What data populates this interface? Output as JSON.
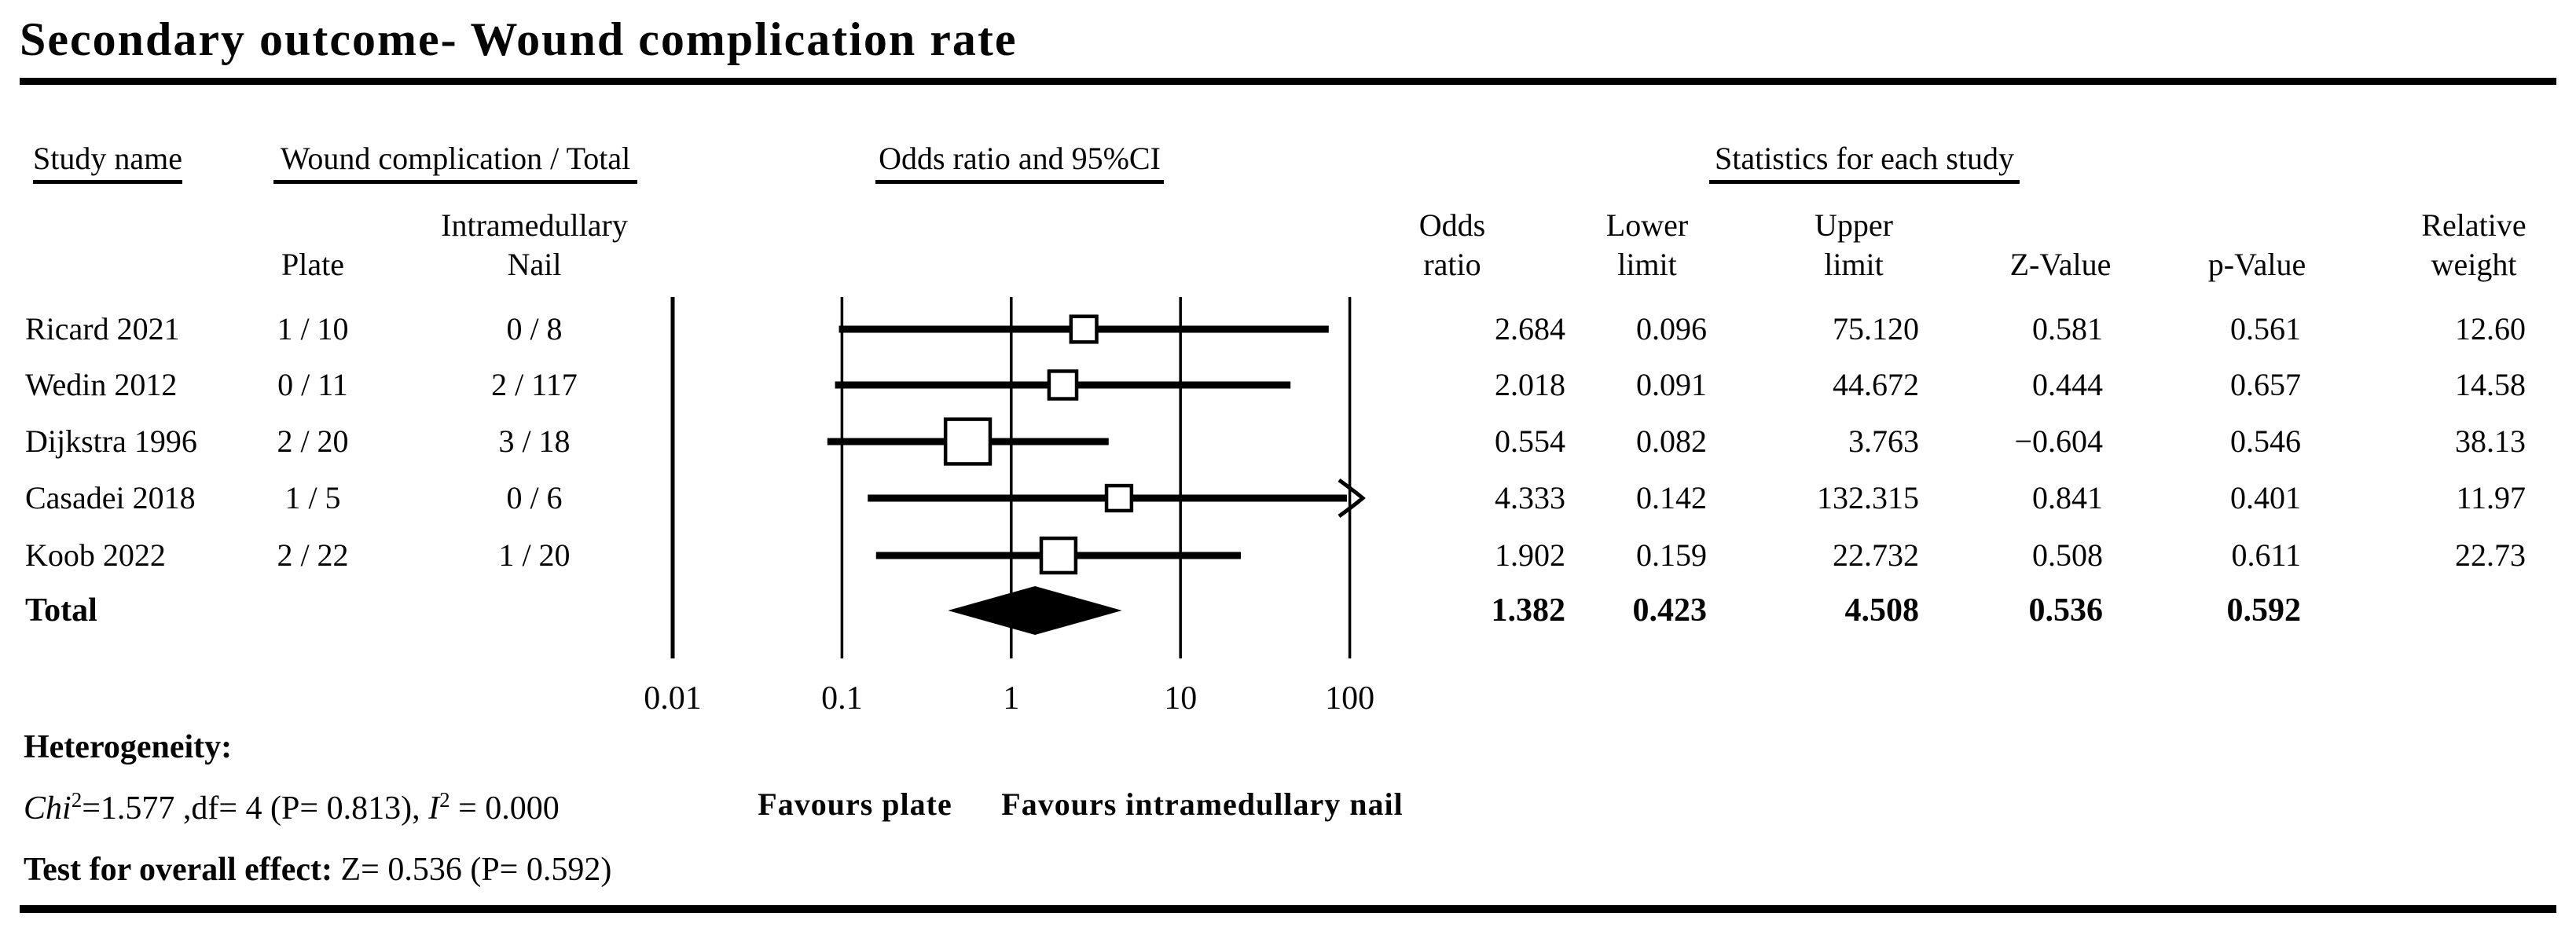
{
  "title": "Secondary outcome- Wound complication rate",
  "columns": {
    "study": "Study name",
    "events_group": "Wound complication / Total",
    "plate": "Plate",
    "nail": "Intramedullary\nNail",
    "or_ci_group": "Odds ratio and 95%CI",
    "stats_group": "Statistics for each study",
    "odds_ratio": "Odds\nratio",
    "lower": "Lower\nlimit",
    "upper": "Upper\nlimit",
    "z": "Z-Value",
    "p": "p-Value",
    "weight": "Relative\nweight"
  },
  "rows": [
    {
      "study": "Ricard 2021",
      "plate": "1 / 10",
      "nail": "0 / 8",
      "or": "2.684",
      "lower": "0.096",
      "upper": "75.120",
      "z": "0.581",
      "p": "0.561",
      "weight": "12.60",
      "bold": false
    },
    {
      "study": "Wedin 2012",
      "plate": "0 / 11",
      "nail": "2 / 117",
      "or": "2.018",
      "lower": "0.091",
      "upper": "44.672",
      "z": "0.444",
      "p": "0.657",
      "weight": "14.58",
      "bold": false
    },
    {
      "study": "Dijkstra 1996",
      "plate": "2 / 20",
      "nail": "3 / 18",
      "or": "0.554",
      "lower": "0.082",
      "upper": "3.763",
      "z": "−0.604",
      "p": "0.546",
      "weight": "38.13",
      "bold": false
    },
    {
      "study": "Casadei 2018",
      "plate": "1 / 5",
      "nail": "0 / 6",
      "or": "4.333",
      "lower": "0.142",
      "upper": "132.315",
      "z": "0.841",
      "p": "0.401",
      "weight": "11.97",
      "bold": false
    },
    {
      "study": "Koob 2022",
      "plate": "2 / 22",
      "nail": "1 / 20",
      "or": "1.902",
      "lower": "0.159",
      "upper": "22.732",
      "z": "0.508",
      "p": "0.611",
      "weight": "22.73",
      "bold": false
    },
    {
      "study": "Total",
      "plate": "",
      "nail": "",
      "or": "1.382",
      "lower": "0.423",
      "upper": "4.508",
      "z": "0.536",
      "p": "0.592",
      "weight": "",
      "bold": true
    }
  ],
  "chart_data": {
    "type": "forest",
    "x_scale": "log",
    "x_ticks": [
      "0.01",
      "0.1",
      "1",
      "10",
      "100"
    ],
    "x_clip_max": 100,
    "effect_measure": "Odds ratio",
    "studies": [
      {
        "name": "Ricard 2021",
        "or": 2.684,
        "lower": 0.096,
        "upper": 75.12,
        "weight": 12.6
      },
      {
        "name": "Wedin 2012",
        "or": 2.018,
        "lower": 0.091,
        "upper": 44.672,
        "weight": 14.58
      },
      {
        "name": "Dijkstra 1996",
        "or": 0.554,
        "lower": 0.082,
        "upper": 3.763,
        "weight": 38.13
      },
      {
        "name": "Casadei 2018",
        "or": 4.333,
        "lower": 0.142,
        "upper": 132.315,
        "weight": 11.97
      },
      {
        "name": "Koob 2022",
        "or": 1.902,
        "lower": 0.159,
        "upper": 22.732,
        "weight": 22.73
      }
    ],
    "total": {
      "name": "Total",
      "or": 1.382,
      "lower": 0.423,
      "upper": 4.508
    },
    "favours_left": "Favours plate",
    "favours_right": "Favours intramedullary nail"
  },
  "footer": {
    "heterogeneity_label": "Heterogeneity:",
    "het_parts": [
      "Chi",
      "2",
      "=1.577 ,df= 4 (P= 0.813), ",
      "I",
      "2",
      " = 0.000"
    ],
    "overall_label": "Test for overall effect:",
    "overall_value": " Z= 0.536 (P= 0.592)"
  }
}
